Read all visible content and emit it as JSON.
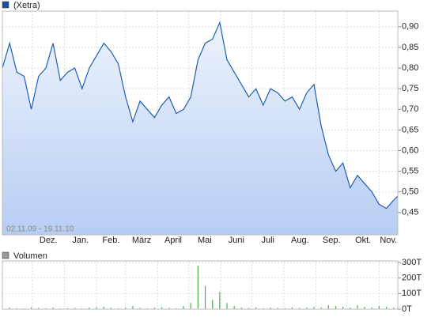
{
  "chart_data": [
    {
      "type": "line",
      "date_range": "02.11.09 - 19.11.10",
      "x": [
        "2009-11-02",
        "2009-11-09",
        "2009-11-16",
        "2009-11-23",
        "2009-11-30",
        "2009-12-07",
        "2009-12-14",
        "2009-12-21",
        "2009-12-28",
        "2010-01-04",
        "2010-01-11",
        "2010-01-18",
        "2010-01-25",
        "2010-02-01",
        "2010-02-08",
        "2010-02-15",
        "2010-02-22",
        "2010-03-01",
        "2010-03-08",
        "2010-03-15",
        "2010-03-22",
        "2010-03-29",
        "2010-04-05",
        "2010-04-12",
        "2010-04-19",
        "2010-04-26",
        "2010-05-03",
        "2010-05-10",
        "2010-05-17",
        "2010-05-24",
        "2010-05-31",
        "2010-06-07",
        "2010-06-14",
        "2010-06-21",
        "2010-06-28",
        "2010-07-05",
        "2010-07-12",
        "2010-07-19",
        "2010-07-26",
        "2010-08-02",
        "2010-08-09",
        "2010-08-16",
        "2010-08-23",
        "2010-08-30",
        "2010-09-06",
        "2010-09-13",
        "2010-09-20",
        "2010-09-27",
        "2010-10-04",
        "2010-10-11",
        "2010-10-18",
        "2010-10-25",
        "2010-11-01",
        "2010-11-08",
        "2010-11-15",
        "2010-11-19"
      ],
      "series": [
        {
          "name": "(Xetra)",
          "color": "#1f5fb0",
          "values": [
            0.8,
            0.86,
            0.79,
            0.78,
            0.7,
            0.78,
            0.8,
            0.86,
            0.77,
            0.79,
            0.8,
            0.75,
            0.8,
            0.83,
            0.86,
            0.84,
            0.81,
            0.73,
            0.67,
            0.72,
            0.7,
            0.68,
            0.71,
            0.73,
            0.69,
            0.7,
            0.73,
            0.82,
            0.86,
            0.87,
            0.91,
            0.82,
            0.79,
            0.76,
            0.73,
            0.75,
            0.71,
            0.75,
            0.74,
            0.72,
            0.73,
            0.7,
            0.74,
            0.76,
            0.66,
            0.59,
            0.55,
            0.57,
            0.51,
            0.54,
            0.52,
            0.5,
            0.47,
            0.46,
            0.48,
            0.49
          ]
        }
      ],
      "xlim": [
        "2009-11-02",
        "2010-11-19"
      ],
      "xticks": [
        {
          "value": "2009-12-01",
          "label": "Dez."
        },
        {
          "value": "2010-01-01",
          "label": "Jan."
        },
        {
          "value": "2010-02-01",
          "label": "Feb."
        },
        {
          "value": "2010-03-01",
          "label": "März"
        },
        {
          "value": "2010-04-01",
          "label": "April"
        },
        {
          "value": "2010-05-01",
          "label": "Mai"
        },
        {
          "value": "2010-06-01",
          "label": "Juni"
        },
        {
          "value": "2010-07-01",
          "label": "Juli"
        },
        {
          "value": "2010-08-01",
          "label": "Aug."
        },
        {
          "value": "2010-09-01",
          "label": "Sep."
        },
        {
          "value": "2010-10-01",
          "label": "Okt."
        },
        {
          "value": "2010-11-01",
          "label": "Nov."
        }
      ],
      "ylim": [
        0.396,
        0.938
      ],
      "yticks": [
        {
          "value": 0.45,
          "label": "0,45"
        },
        {
          "value": 0.5,
          "label": "0,50"
        },
        {
          "value": 0.55,
          "label": "0,55"
        },
        {
          "value": 0.6,
          "label": "0,60"
        },
        {
          "value": 0.65,
          "label": "0,65"
        },
        {
          "value": 0.7,
          "label": "0,70"
        },
        {
          "value": 0.75,
          "label": "0,75"
        },
        {
          "value": 0.8,
          "label": "0,80"
        },
        {
          "value": 0.85,
          "label": "0,85"
        },
        {
          "value": 0.9,
          "label": "0,90"
        }
      ],
      "grid": true
    },
    {
      "type": "bar",
      "x": [
        "2009-11-02",
        "2009-11-09",
        "2009-11-16",
        "2009-11-23",
        "2009-11-30",
        "2009-12-07",
        "2009-12-14",
        "2009-12-21",
        "2009-12-28",
        "2010-01-04",
        "2010-01-11",
        "2010-01-18",
        "2010-01-25",
        "2010-02-01",
        "2010-02-08",
        "2010-02-15",
        "2010-02-22",
        "2010-03-01",
        "2010-03-08",
        "2010-03-15",
        "2010-03-22",
        "2010-03-29",
        "2010-04-05",
        "2010-04-12",
        "2010-04-19",
        "2010-04-26",
        "2010-05-03",
        "2010-05-10",
        "2010-05-17",
        "2010-05-24",
        "2010-05-31",
        "2010-06-07",
        "2010-06-14",
        "2010-06-21",
        "2010-06-28",
        "2010-07-05",
        "2010-07-12",
        "2010-07-19",
        "2010-07-26",
        "2010-08-02",
        "2010-08-09",
        "2010-08-16",
        "2010-08-23",
        "2010-08-30",
        "2010-09-06",
        "2010-09-13",
        "2010-09-20",
        "2010-09-27",
        "2010-10-04",
        "2010-10-11",
        "2010-10-18",
        "2010-10-25",
        "2010-11-01",
        "2010-11-08",
        "2010-11-15",
        "2010-11-19"
      ],
      "series": [
        {
          "name": "Volumen",
          "color": "#4caf50",
          "values": [
            8,
            10,
            6,
            5,
            12,
            8,
            6,
            10,
            4,
            6,
            8,
            5,
            10,
            12,
            15,
            8,
            6,
            10,
            20,
            8,
            6,
            10,
            12,
            8,
            6,
            20,
            40,
            280,
            150,
            60,
            110,
            40,
            20,
            10,
            8,
            12,
            6,
            10,
            8,
            6,
            12,
            8,
            10,
            15,
            12,
            25,
            20,
            15,
            10,
            25,
            15,
            12,
            20,
            15,
            10,
            8
          ]
        }
      ],
      "xlim": [
        "2009-11-02",
        "2010-11-19"
      ],
      "ylim": [
        0,
        310
      ],
      "yticks": [
        {
          "value": 0,
          "label": "0T"
        },
        {
          "value": 100,
          "label": "100T"
        },
        {
          "value": 200,
          "label": "200T"
        },
        {
          "value": 300,
          "label": "300T"
        }
      ],
      "grid": true
    }
  ]
}
